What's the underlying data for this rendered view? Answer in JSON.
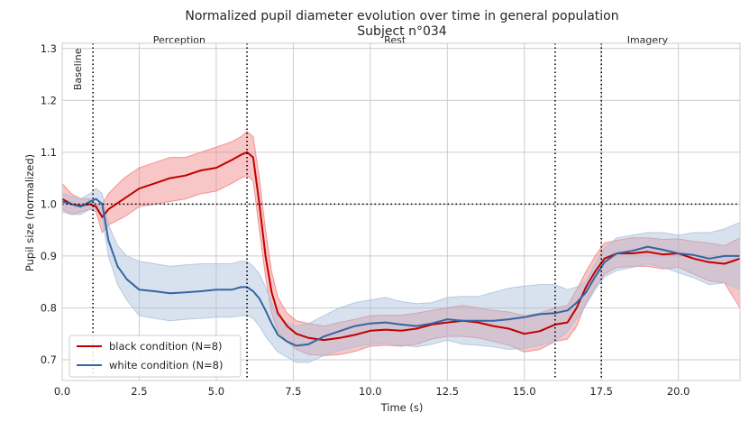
{
  "chart_data": {
    "type": "line",
    "title": "Normalized pupil diameter evolution over time in general population",
    "subtitle": "Subject n°034",
    "xlabel": "Time (s)",
    "ylabel": "Pupil size (normalized)",
    "xlim": [
      0,
      22
    ],
    "ylim": [
      0.66,
      1.31
    ],
    "xticks": [
      0,
      2.5,
      5,
      7.5,
      10,
      12.5,
      15,
      17.5,
      20
    ],
    "xtick_labels": [
      "0.0",
      "2.5",
      "5.0",
      "7.5",
      "10.0",
      "12.5",
      "15.0",
      "17.5",
      "20.0"
    ],
    "yticks": [
      0.7,
      0.8,
      0.9,
      1.0,
      1.1,
      1.2,
      1.3
    ],
    "ytick_labels": [
      "0.7",
      "0.8",
      "0.9",
      "1.0",
      "1.1",
      "1.2",
      "1.3"
    ],
    "grid": true,
    "legend_position": "bottom-left",
    "reference_line_y": 1.0,
    "vlines": [
      1.0,
      6.0,
      16.0,
      17.5
    ],
    "phases": [
      {
        "label": "Baseline",
        "x": 0.5,
        "y": 1.26,
        "rotated": true
      },
      {
        "label": "Perception",
        "x": 3.8,
        "y": 1.31,
        "rotated": false
      },
      {
        "label": "Rest",
        "x": 10.8,
        "y": 1.31,
        "rotated": false
      },
      {
        "label": "Imagery",
        "x": 19.0,
        "y": 1.31,
        "rotated": false
      }
    ],
    "series": [
      {
        "name": "black condition (N=8)",
        "color": "#c00000",
        "band_color": "#f08080",
        "x": [
          0,
          0.3,
          0.6,
          0.9,
          1.1,
          1.3,
          1.5,
          2.0,
          2.5,
          3.0,
          3.5,
          4.0,
          4.5,
          5.0,
          5.5,
          5.8,
          6.0,
          6.2,
          6.4,
          6.6,
          6.8,
          7.0,
          7.3,
          7.6,
          8.0,
          8.5,
          9.0,
          9.5,
          10.0,
          10.5,
          11.0,
          11.5,
          12.0,
          12.5,
          13.0,
          13.5,
          14.0,
          14.5,
          15.0,
          15.5,
          16.0,
          16.4,
          16.7,
          17.0,
          17.3,
          17.6,
          18.0,
          18.5,
          19.0,
          19.5,
          20.0,
          20.5,
          21.0,
          21.5,
          22.0
        ],
        "values": [
          1.01,
          1.0,
          0.997,
          1.0,
          0.995,
          0.975,
          0.99,
          1.01,
          1.03,
          1.04,
          1.05,
          1.055,
          1.065,
          1.07,
          1.085,
          1.095,
          1.1,
          1.09,
          1.0,
          0.9,
          0.83,
          0.79,
          0.765,
          0.75,
          0.742,
          0.738,
          0.742,
          0.748,
          0.756,
          0.758,
          0.756,
          0.76,
          0.768,
          0.772,
          0.775,
          0.772,
          0.765,
          0.76,
          0.75,
          0.755,
          0.768,
          0.772,
          0.8,
          0.84,
          0.87,
          0.895,
          0.905,
          0.905,
          0.908,
          0.903,
          0.905,
          0.895,
          0.888,
          0.885,
          0.895
        ],
        "upper": [
          1.04,
          1.02,
          1.01,
          1.01,
          1.0,
          1.0,
          1.02,
          1.05,
          1.07,
          1.08,
          1.09,
          1.09,
          1.1,
          1.11,
          1.12,
          1.13,
          1.14,
          1.13,
          1.05,
          0.95,
          0.87,
          0.82,
          0.79,
          0.775,
          0.77,
          0.765,
          0.772,
          0.778,
          0.785,
          0.786,
          0.786,
          0.79,
          0.795,
          0.8,
          0.805,
          0.8,
          0.795,
          0.792,
          0.785,
          0.79,
          0.8,
          0.805,
          0.835,
          0.87,
          0.9,
          0.925,
          0.93,
          0.935,
          0.935,
          0.932,
          0.933,
          0.928,
          0.925,
          0.92,
          0.935
        ],
        "lower": [
          0.99,
          0.98,
          0.985,
          0.99,
          0.985,
          0.945,
          0.96,
          0.975,
          0.995,
          1.0,
          1.005,
          1.01,
          1.02,
          1.025,
          1.04,
          1.05,
          1.055,
          1.045,
          0.95,
          0.86,
          0.79,
          0.755,
          0.735,
          0.72,
          0.71,
          0.708,
          0.71,
          0.716,
          0.726,
          0.728,
          0.726,
          0.73,
          0.74,
          0.745,
          0.745,
          0.742,
          0.735,
          0.728,
          0.715,
          0.72,
          0.735,
          0.74,
          0.765,
          0.81,
          0.84,
          0.865,
          0.878,
          0.88,
          0.88,
          0.875,
          0.878,
          0.865,
          0.852,
          0.848,
          0.8
        ]
      },
      {
        "name": "white condition (N=8)",
        "color": "#3465a4",
        "band_color": "#a9bfdc",
        "x": [
          0,
          0.3,
          0.6,
          0.9,
          1.1,
          1.3,
          1.5,
          1.8,
          2.1,
          2.5,
          3.0,
          3.5,
          4.0,
          4.5,
          5.0,
          5.5,
          5.8,
          6.0,
          6.2,
          6.4,
          6.6,
          6.8,
          7.0,
          7.3,
          7.6,
          8.0,
          8.5,
          9.0,
          9.5,
          10.0,
          10.5,
          11.0,
          11.5,
          12.0,
          12.5,
          13.0,
          13.5,
          14.0,
          14.5,
          15.0,
          15.5,
          16.0,
          16.4,
          16.7,
          17.0,
          17.3,
          17.6,
          18.0,
          18.5,
          19.0,
          19.5,
          20.0,
          20.5,
          21.0,
          21.5,
          22.0
        ],
        "values": [
          1.005,
          1.0,
          0.995,
          1.005,
          1.01,
          1.0,
          0.93,
          0.88,
          0.855,
          0.835,
          0.832,
          0.828,
          0.83,
          0.832,
          0.835,
          0.835,
          0.84,
          0.84,
          0.832,
          0.818,
          0.795,
          0.77,
          0.748,
          0.735,
          0.727,
          0.73,
          0.745,
          0.755,
          0.765,
          0.77,
          0.772,
          0.768,
          0.765,
          0.77,
          0.778,
          0.775,
          0.775,
          0.775,
          0.778,
          0.782,
          0.788,
          0.79,
          0.795,
          0.81,
          0.83,
          0.86,
          0.888,
          0.905,
          0.91,
          0.918,
          0.912,
          0.905,
          0.902,
          0.895,
          0.9,
          0.9
        ],
        "upper": [
          1.02,
          1.015,
          1.01,
          1.02,
          1.03,
          1.02,
          0.96,
          0.92,
          0.9,
          0.89,
          0.885,
          0.88,
          0.883,
          0.885,
          0.885,
          0.885,
          0.89,
          0.89,
          0.88,
          0.865,
          0.84,
          0.81,
          0.785,
          0.77,
          0.765,
          0.77,
          0.785,
          0.8,
          0.81,
          0.815,
          0.82,
          0.812,
          0.808,
          0.81,
          0.82,
          0.822,
          0.822,
          0.83,
          0.838,
          0.842,
          0.845,
          0.845,
          0.835,
          0.84,
          0.85,
          0.885,
          0.915,
          0.935,
          0.94,
          0.945,
          0.945,
          0.94,
          0.945,
          0.945,
          0.952,
          0.965
        ],
        "lower": [
          0.985,
          0.98,
          0.98,
          0.99,
          0.99,
          0.975,
          0.9,
          0.845,
          0.815,
          0.785,
          0.78,
          0.775,
          0.778,
          0.78,
          0.782,
          0.782,
          0.785,
          0.785,
          0.78,
          0.765,
          0.745,
          0.73,
          0.715,
          0.705,
          0.695,
          0.695,
          0.708,
          0.718,
          0.725,
          0.73,
          0.732,
          0.728,
          0.725,
          0.73,
          0.738,
          0.73,
          0.728,
          0.725,
          0.72,
          0.722,
          0.728,
          0.735,
          0.755,
          0.78,
          0.805,
          0.835,
          0.86,
          0.872,
          0.878,
          0.885,
          0.878,
          0.868,
          0.858,
          0.845,
          0.848,
          0.835
        ]
      }
    ]
  }
}
